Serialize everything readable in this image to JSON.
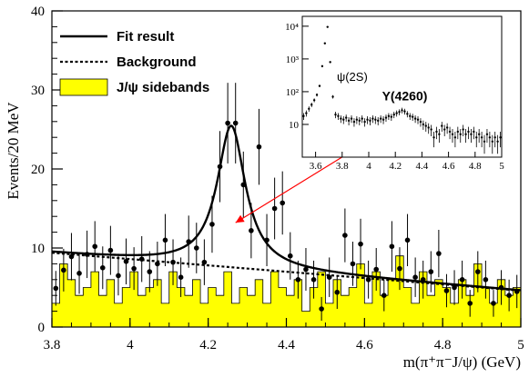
{
  "chart_data": {
    "type": "scatter",
    "xlabel": "m(π⁺π⁻J/ψ) (GeV)",
    "ylabel": "Events/20 MeV",
    "xlim": [
      3.8,
      5.0
    ],
    "ylim": [
      0,
      40
    ],
    "x_ticks": [
      3.8,
      4.0,
      4.2,
      4.4,
      4.6,
      4.8,
      5.0
    ],
    "x_tick_labels": [
      "3.8",
      "4",
      "4.2",
      "4.4",
      "4.6",
      "4.8",
      "5"
    ],
    "y_ticks": [
      0,
      10,
      20,
      30,
      40
    ],
    "y_tick_labels": [
      "0",
      "10",
      "20",
      "30",
      "40"
    ],
    "legend": {
      "placement": "top-left",
      "entries": [
        {
          "label": "Fit result",
          "style": "solid-line"
        },
        {
          "label": "Background",
          "style": "dashed-line"
        },
        {
          "label": "J/ψ sidebands",
          "style": "filled-box"
        }
      ]
    },
    "colors": {
      "sideband_fill": "#ffff00",
      "fit_line": "#000000",
      "arrow": "#ff0000"
    },
    "series": [
      {
        "name": "Data",
        "kind": "points-with-errors",
        "points": [
          [
            3.81,
            4.9,
            2.2
          ],
          [
            3.83,
            7.2,
            2.7
          ],
          [
            3.85,
            8.9,
            3.0
          ],
          [
            3.87,
            6.8,
            2.6
          ],
          [
            3.89,
            9.2,
            3.0
          ],
          [
            3.91,
            10.2,
            3.2
          ],
          [
            3.93,
            7.5,
            2.7
          ],
          [
            3.95,
            9.7,
            3.1
          ],
          [
            3.97,
            6.5,
            2.5
          ],
          [
            3.99,
            8.3,
            2.9
          ],
          [
            4.01,
            7.4,
            2.7
          ],
          [
            4.03,
            8.6,
            2.9
          ],
          [
            4.05,
            7.0,
            2.6
          ],
          [
            4.07,
            8.0,
            2.8
          ],
          [
            4.09,
            11.0,
            3.3
          ],
          [
            4.11,
            8.2,
            2.9
          ],
          [
            4.13,
            6.3,
            2.5
          ],
          [
            4.15,
            10.8,
            3.3
          ],
          [
            4.17,
            10.0,
            3.2
          ],
          [
            4.19,
            8.2,
            2.9
          ],
          [
            4.21,
            13.0,
            3.6
          ],
          [
            4.23,
            20.3,
            4.5
          ],
          [
            4.25,
            25.8,
            5.1
          ],
          [
            4.27,
            25.8,
            5.1
          ],
          [
            4.29,
            18.0,
            4.2
          ],
          [
            4.31,
            12.2,
            3.5
          ],
          [
            4.33,
            22.8,
            4.8
          ],
          [
            4.35,
            11.0,
            3.3
          ],
          [
            4.37,
            15.0,
            3.9
          ],
          [
            4.39,
            15.7,
            4.0
          ],
          [
            4.41,
            9.0,
            3.0
          ],
          [
            4.43,
            6.0,
            2.4
          ],
          [
            4.45,
            7.3,
            2.7
          ],
          [
            4.47,
            6.0,
            2.4
          ],
          [
            4.49,
            2.3,
            1.5
          ],
          [
            4.51,
            6.3,
            2.5
          ],
          [
            4.53,
            4.4,
            2.1
          ],
          [
            4.55,
            11.6,
            3.4
          ],
          [
            4.57,
            8.0,
            2.8
          ],
          [
            4.59,
            10.5,
            3.2
          ],
          [
            4.61,
            6.0,
            2.4
          ],
          [
            4.63,
            7.3,
            2.7
          ],
          [
            4.65,
            4.0,
            2.0
          ],
          [
            4.67,
            10.2,
            3.2
          ],
          [
            4.69,
            7.4,
            2.7
          ],
          [
            4.71,
            11.0,
            3.3
          ],
          [
            4.73,
            6.3,
            2.5
          ],
          [
            4.75,
            6.0,
            2.4
          ],
          [
            4.77,
            7.0,
            2.6
          ],
          [
            4.79,
            9.3,
            3.0
          ],
          [
            4.81,
            4.6,
            2.1
          ],
          [
            4.83,
            5.0,
            2.2
          ],
          [
            4.85,
            6.0,
            2.4
          ],
          [
            4.87,
            3.0,
            1.7
          ],
          [
            4.89,
            7.0,
            2.6
          ],
          [
            4.91,
            6.0,
            2.4
          ],
          [
            4.93,
            3.0,
            1.7
          ],
          [
            4.95,
            5.0,
            2.2
          ],
          [
            4.97,
            4.0,
            2.0
          ],
          [
            4.99,
            4.5,
            2.1
          ]
        ]
      },
      {
        "name": "Fit result",
        "kind": "line",
        "signal_peak": 4.259,
        "signal_width": 0.088,
        "signal_amplitude": 17.9,
        "background_at_3.8": 9.4,
        "background_at_5.0": 4.6
      },
      {
        "name": "Background",
        "kind": "dashed-line",
        "y_at_3.8": 9.4,
        "y_at_5.0": 4.6
      },
      {
        "name": "J/ψ sidebands",
        "kind": "filled-histogram",
        "bin_width": 0.02,
        "x_start": 3.8,
        "values": [
          3,
          8,
          6,
          4,
          5,
          7,
          4,
          6,
          3,
          5,
          7,
          4,
          5,
          6,
          3,
          7,
          5,
          4,
          6,
          3,
          5,
          4,
          7,
          3,
          5,
          4,
          6,
          3,
          7,
          5,
          4,
          6,
          2,
          5,
          7,
          3,
          6,
          4,
          5,
          8,
          3,
          7,
          4,
          6,
          9,
          5,
          3,
          7,
          4,
          6,
          5,
          3,
          6,
          4,
          8,
          5,
          3,
          6,
          4,
          5
        ]
      }
    ],
    "inset": {
      "type": "scatter",
      "ylog": true,
      "xlim": [
        3.5,
        5.0
      ],
      "ylim": [
        1,
        20000
      ],
      "x_tick_labels": [
        "3.6",
        "3.8",
        "4",
        "4.2",
        "4.4",
        "4.6",
        "4.8",
        "5"
      ],
      "x_ticks": [
        3.6,
        3.8,
        4.0,
        4.2,
        4.4,
        4.6,
        4.8,
        5.0
      ],
      "y_ticks": [
        10,
        100,
        1000,
        10000
      ],
      "y_tick_labels": [
        "10",
        "10²",
        "10³",
        "10⁴"
      ],
      "annotations": [
        "ψ(2S)",
        "Y(4260)"
      ],
      "points": [
        [
          3.51,
          18
        ],
        [
          3.53,
          22
        ],
        [
          3.55,
          30
        ],
        [
          3.57,
          40
        ],
        [
          3.59,
          55
        ],
        [
          3.61,
          80
        ],
        [
          3.63,
          150
        ],
        [
          3.65,
          600
        ],
        [
          3.67,
          3000
        ],
        [
          3.69,
          9500
        ],
        [
          3.71,
          800
        ],
        [
          3.73,
          70
        ],
        [
          3.75,
          20
        ],
        [
          3.77,
          18
        ],
        [
          3.79,
          15
        ],
        [
          3.81,
          14
        ],
        [
          3.83,
          16
        ],
        [
          3.85,
          13
        ],
        [
          3.87,
          15
        ],
        [
          3.89,
          12
        ],
        [
          3.91,
          14
        ],
        [
          3.93,
          13
        ],
        [
          3.95,
          15
        ],
        [
          3.97,
          12
        ],
        [
          3.99,
          14
        ],
        [
          4.01,
          13
        ],
        [
          4.03,
          15
        ],
        [
          4.05,
          14
        ],
        [
          4.07,
          13
        ],
        [
          4.09,
          15
        ],
        [
          4.11,
          14
        ],
        [
          4.13,
          16
        ],
        [
          4.15,
          18
        ],
        [
          4.17,
          17
        ],
        [
          4.19,
          20
        ],
        [
          4.21,
          22
        ],
        [
          4.23,
          24
        ],
        [
          4.25,
          27
        ],
        [
          4.27,
          25
        ],
        [
          4.29,
          21
        ],
        [
          4.31,
          18
        ],
        [
          4.33,
          17
        ],
        [
          4.35,
          15
        ],
        [
          4.37,
          14
        ],
        [
          4.39,
          12
        ],
        [
          4.41,
          10
        ],
        [
          4.43,
          9
        ],
        [
          4.45,
          8
        ],
        [
          4.47,
          7
        ],
        [
          4.49,
          4
        ],
        [
          4.51,
          6
        ],
        [
          4.53,
          5
        ],
        [
          4.55,
          9
        ],
        [
          4.57,
          7
        ],
        [
          4.59,
          8
        ],
        [
          4.61,
          6
        ],
        [
          4.63,
          5
        ],
        [
          4.65,
          4
        ],
        [
          4.67,
          6
        ],
        [
          4.69,
          5
        ],
        [
          4.71,
          7
        ],
        [
          4.73,
          5
        ],
        [
          4.75,
          6
        ],
        [
          4.77,
          5
        ],
        [
          4.79,
          6
        ],
        [
          4.81,
          4
        ],
        [
          4.83,
          5
        ],
        [
          4.85,
          4
        ],
        [
          4.87,
          3
        ],
        [
          4.89,
          5
        ],
        [
          4.91,
          4
        ],
        [
          4.93,
          3
        ],
        [
          4.95,
          4
        ],
        [
          4.97,
          3
        ],
        [
          4.99,
          4
        ]
      ]
    }
  }
}
